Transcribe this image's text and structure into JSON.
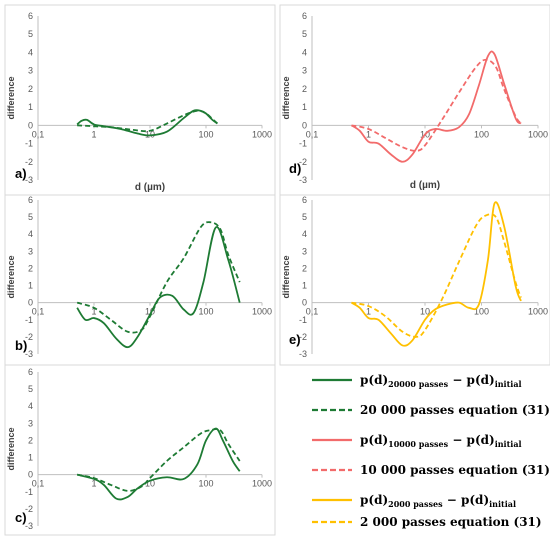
{
  "chart_data": [
    {
      "id": "a",
      "type": "line",
      "panel_label": "a)",
      "xlabel": "d (µm)",
      "ylabel": "difference",
      "xscale": "log",
      "xlim": [
        0.1,
        1000
      ],
      "ylim": [
        -3,
        6
      ],
      "x_ticks": [
        "0,1",
        "1",
        "10",
        "100",
        "1000"
      ],
      "y_ticks": [
        "-3",
        "-2",
        "-1",
        "0",
        "1",
        "2",
        "3",
        "4",
        "5",
        "6"
      ],
      "grid": false,
      "series": [
        {
          "style": "solid",
          "color": "#1e7b34",
          "x": [
            0.5,
            0.6,
            0.75,
            1,
            1.5,
            3,
            6,
            10,
            20,
            40,
            60,
            80,
            100,
            130,
            160
          ],
          "y": [
            0.05,
            0.25,
            0.3,
            0.05,
            -0.05,
            -0.2,
            -0.45,
            -0.55,
            -0.35,
            0.4,
            0.8,
            0.8,
            0.65,
            0.3,
            0.1
          ]
        },
        {
          "style": "dashed",
          "color": "#1e7b34",
          "x": [
            0.5,
            1,
            2,
            5,
            10,
            20,
            40,
            70,
            100,
            130,
            160
          ],
          "y": [
            0,
            -0.05,
            -0.1,
            -0.25,
            -0.3,
            0.1,
            0.55,
            0.8,
            0.65,
            0.35,
            0.1
          ]
        }
      ]
    },
    {
      "id": "b",
      "type": "line",
      "panel_label": "b)",
      "xlabel": "",
      "ylabel": "difference",
      "xscale": "log",
      "xlim": [
        0.1,
        1000
      ],
      "ylim": [
        -3,
        6
      ],
      "x_ticks": [
        "0,1",
        "1",
        "10",
        "100",
        "1000"
      ],
      "y_ticks": [
        "-3",
        "-2",
        "-1",
        "0",
        "1",
        "2",
        "3",
        "4",
        "5",
        "6"
      ],
      "grid": false,
      "series": [
        {
          "style": "solid",
          "color": "#1e7b34",
          "x": [
            0.5,
            0.7,
            1,
            1.5,
            2.5,
            4,
            6,
            10,
            15,
            25,
            40,
            60,
            90,
            150,
            250,
            400
          ],
          "y": [
            -0.3,
            -1.0,
            -0.9,
            -1.2,
            -2.1,
            -2.6,
            -2.0,
            -0.7,
            0.3,
            0.4,
            -0.4,
            -0.6,
            1.2,
            4.4,
            2.5,
            0.0
          ]
        },
        {
          "style": "dashed",
          "color": "#1e7b34",
          "x": [
            0.5,
            1,
            2,
            4,
            7,
            10,
            20,
            40,
            80,
            120,
            180,
            250,
            400
          ],
          "y": [
            0.0,
            -0.3,
            -1.0,
            -1.7,
            -1.6,
            -0.8,
            1.2,
            2.6,
            4.4,
            4.7,
            4.3,
            2.8,
            1.2
          ]
        }
      ]
    },
    {
      "id": "c",
      "type": "line",
      "panel_label": "c)",
      "xlabel": "",
      "ylabel": "difference",
      "xscale": "log",
      "xlim": [
        0.1,
        1000
      ],
      "ylim": [
        -3,
        6
      ],
      "x_ticks": [
        "0,1",
        "1",
        "10",
        "100",
        "1000"
      ],
      "y_ticks": [
        "-3",
        "-2",
        "-1",
        "0",
        "1",
        "2",
        "3",
        "4",
        "5",
        "6"
      ],
      "grid": false,
      "series": [
        {
          "style": "solid",
          "color": "#1e7b34",
          "x": [
            0.5,
            1,
            1.5,
            2.5,
            4,
            6,
            10,
            20,
            40,
            70,
            100,
            150,
            200,
            300,
            400
          ],
          "y": [
            0.0,
            -0.25,
            -0.6,
            -1.4,
            -1.3,
            -0.8,
            -0.35,
            -0.15,
            -0.25,
            0.6,
            2.0,
            2.7,
            2.0,
            0.8,
            0.2
          ]
        },
        {
          "style": "dashed",
          "color": "#1e7b34",
          "x": [
            0.5,
            1,
            2,
            4,
            7,
            10,
            20,
            40,
            80,
            120,
            180,
            250,
            400
          ],
          "y": [
            0.0,
            -0.2,
            -0.6,
            -0.95,
            -0.7,
            -0.2,
            0.8,
            1.6,
            2.4,
            2.6,
            2.6,
            1.8,
            0.8
          ]
        }
      ]
    },
    {
      "id": "d",
      "type": "line",
      "panel_label": "d)",
      "xlabel": "d (µm)",
      "ylabel": "difference",
      "xscale": "log",
      "xlim": [
        0.1,
        1000
      ],
      "ylim": [
        -3,
        6
      ],
      "x_ticks": [
        "0,1",
        "1",
        "10",
        "100",
        "1000"
      ],
      "y_ticks": [
        "-3",
        "-2",
        "-1",
        "0",
        "1",
        "2",
        "3",
        "4",
        "5",
        "6"
      ],
      "grid": false,
      "series": [
        {
          "style": "solid",
          "color": "#f26b6b",
          "x": [
            0.5,
            0.7,
            1,
            1.5,
            2.5,
            4,
            6,
            10,
            15,
            25,
            40,
            60,
            90,
            130,
            170,
            250,
            400,
            500
          ],
          "y": [
            0.0,
            -0.3,
            -0.9,
            -1.0,
            -1.6,
            -2.0,
            -1.6,
            -0.5,
            -0.2,
            -0.3,
            -0.1,
            0.6,
            2.2,
            3.8,
            3.9,
            2.3,
            0.4,
            0.1
          ]
        },
        {
          "style": "dashed",
          "color": "#f26b6b",
          "x": [
            0.5,
            1,
            2,
            4,
            7,
            10,
            20,
            40,
            80,
            120,
            180,
            250,
            400,
            500
          ],
          "y": [
            0.0,
            -0.2,
            -0.7,
            -1.2,
            -1.4,
            -1.1,
            0.3,
            1.8,
            3.2,
            3.6,
            3.2,
            2.0,
            0.5,
            0.1
          ]
        }
      ]
    },
    {
      "id": "e",
      "type": "line",
      "panel_label": "e)",
      "xlabel": "",
      "ylabel": "difference",
      "xscale": "log",
      "xlim": [
        0.1,
        1000
      ],
      "ylim": [
        -3,
        6
      ],
      "x_ticks": [
        "0,1",
        "1",
        "10",
        "100",
        "1000"
      ],
      "y_ticks": [
        "-3",
        "-2",
        "-1",
        "0",
        "1",
        "2",
        "3",
        "4",
        "5",
        "6"
      ],
      "grid": false,
      "series": [
        {
          "style": "solid",
          "color": "#ffc000",
          "x": [
            0.5,
            0.7,
            1,
            1.5,
            2.5,
            4,
            6,
            10,
            15,
            25,
            40,
            60,
            90,
            130,
            170,
            250,
            400,
            500
          ],
          "y": [
            0.0,
            -0.3,
            -0.9,
            -1.0,
            -1.8,
            -2.5,
            -2.2,
            -1.0,
            -0.4,
            -0.1,
            0.0,
            -0.3,
            -0.1,
            2.5,
            5.8,
            4.5,
            1.0,
            0.1
          ]
        },
        {
          "style": "dashed",
          "color": "#ffc000",
          "x": [
            0.5,
            1,
            2,
            4,
            7,
            10,
            20,
            40,
            80,
            120,
            180,
            250,
            400,
            500
          ],
          "y": [
            0.0,
            -0.2,
            -0.8,
            -1.7,
            -2.0,
            -1.6,
            0.2,
            2.4,
            4.5,
            5.1,
            5.0,
            3.6,
            1.2,
            0.3
          ]
        }
      ]
    }
  ],
  "legend": [
    {
      "style": "solid",
      "color": "#1e7b34",
      "main": "p(d)",
      "sub1": "20000 passes",
      "mid": " − p(d)",
      "sub2": "initial"
    },
    {
      "style": "dashed",
      "color": "#1e7b34",
      "text": "20 000 passes equation (31)"
    },
    {
      "style": "solid",
      "color": "#f26b6b",
      "main": "p(d)",
      "sub1": "10000 passes",
      "mid": " − p(d)",
      "sub2": "initial"
    },
    {
      "style": "dashed",
      "color": "#f26b6b",
      "text": "10 000 passes equation (31)"
    },
    {
      "style": "solid",
      "color": "#ffc000",
      "main": "p(d)",
      "sub1": "2000 passes",
      "mid": " − p(d)",
      "sub2": "initial"
    },
    {
      "style": "dashed",
      "color": "#ffc000",
      "text": "2 000 passes equation (31)"
    }
  ]
}
